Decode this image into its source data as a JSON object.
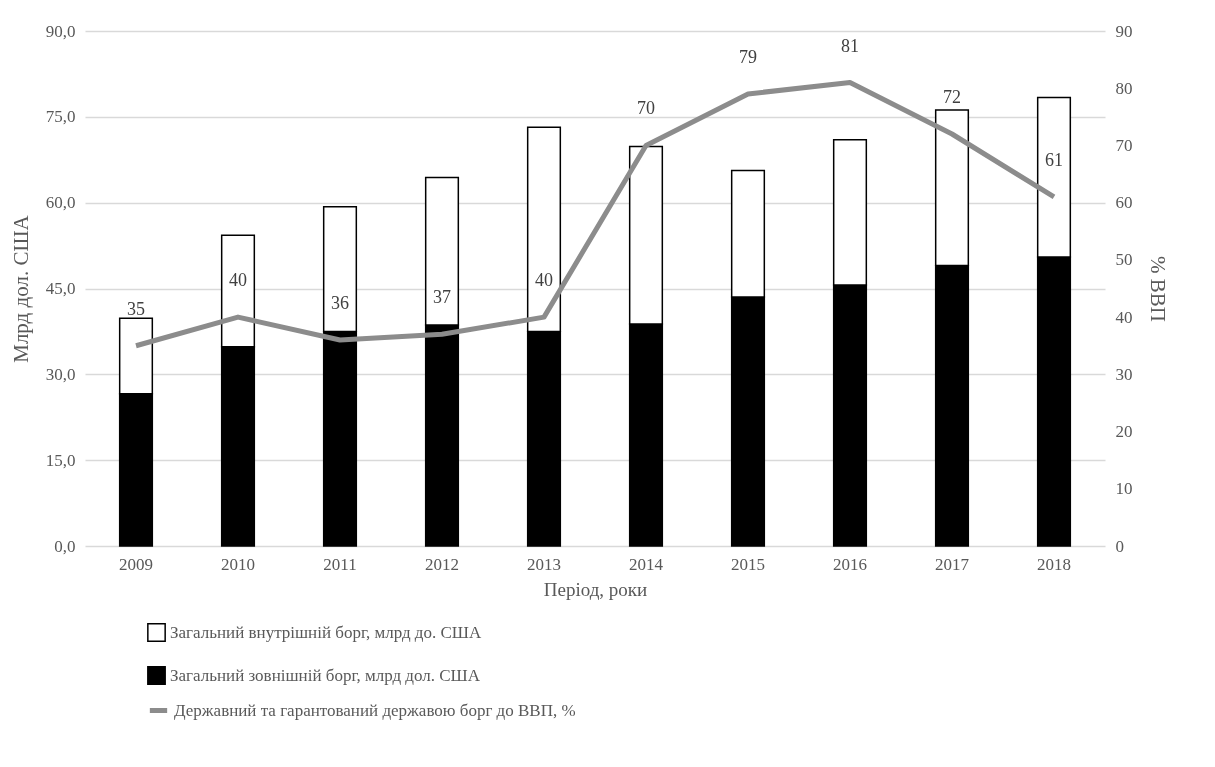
{
  "chart_data": {
    "type": "bar",
    "stacked": true,
    "xlabel": "Період, роки",
    "ylabel": "Млрд дол. США",
    "y2label": "% ВВП",
    "categories": [
      "2009",
      "2010",
      "2011",
      "2012",
      "2013",
      "2014",
      "2015",
      "2016",
      "2017",
      "2018"
    ],
    "series": [
      {
        "name": "Загальний зовнішній борг, млрд дол. США",
        "color": "#000000",
        "values": [
          26.6,
          34.8,
          37.5,
          38.6,
          37.5,
          38.8,
          43.5,
          45.6,
          49.0,
          50.5
        ]
      },
      {
        "name": "Загальний внутрішній борг, млрд до. США",
        "color": "#ffffff",
        "values": [
          13.2,
          19.5,
          21.8,
          25.8,
          35.7,
          31.0,
          22.1,
          25.4,
          27.2,
          27.9
        ]
      },
      {
        "name": "Державний та гарантований державою борг до ВВП, %",
        "type": "line",
        "axis": "y2",
        "color": "#8c8c8c",
        "values": [
          35,
          40,
          36,
          37,
          40,
          70,
          79,
          81,
          72,
          61
        ],
        "value_labels": [
          "35",
          "40",
          "36",
          "37",
          "40",
          "70",
          "79",
          "81",
          "72",
          "61"
        ]
      }
    ],
    "ylim": [
      0,
      90
    ],
    "yticks": [
      {
        "value": 0,
        "label": "0,0"
      },
      {
        "value": 15,
        "label": "15,0"
      },
      {
        "value": 30,
        "label": "30,0"
      },
      {
        "value": 45,
        "label": "45,0"
      },
      {
        "value": 60,
        "label": "60,0"
      },
      {
        "value": 75,
        "label": "75,0"
      },
      {
        "value": 90,
        "label": "90,0"
      }
    ],
    "y2lim": [
      0,
      90
    ],
    "y2ticks": [
      0,
      10,
      20,
      30,
      40,
      50,
      60,
      70,
      80,
      90
    ],
    "grid": "y",
    "legend": "bottom"
  }
}
